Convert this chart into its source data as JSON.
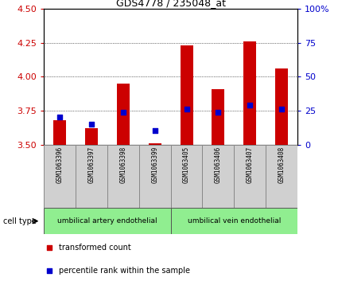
{
  "title": "GDS4778 / 235048_at",
  "samples": [
    "GSM1063396",
    "GSM1063397",
    "GSM1063398",
    "GSM1063399",
    "GSM1063405",
    "GSM1063406",
    "GSM1063407",
    "GSM1063408"
  ],
  "red_values": [
    3.68,
    3.62,
    3.95,
    3.51,
    4.23,
    3.91,
    4.26,
    4.06
  ],
  "blue_percentile": [
    20,
    15,
    24,
    10,
    26,
    24,
    29,
    26
  ],
  "ylim": [
    3.5,
    4.5
  ],
  "yticks": [
    3.5,
    3.75,
    4.0,
    4.25,
    4.5
  ],
  "y2lim": [
    0,
    100
  ],
  "y2ticks": [
    0,
    25,
    50,
    75,
    100
  ],
  "bar_bottom": 3.5,
  "cell_type_artery_label": "umbilical artery endothelial",
  "cell_type_vein_label": "umbilical vein endothelial",
  "cell_type_bg": "#90ee90",
  "legend_red": "transformed count",
  "legend_blue": "percentile rank within the sample",
  "cell_type_label": "cell type",
  "bar_width": 0.4,
  "red_color": "#cc0000",
  "blue_color": "#0000cc",
  "bg_color": "#ffffff",
  "sample_box_color": "#d0d0d0",
  "grid_color": "#000000",
  "tick_color_left": "#cc0000",
  "tick_color_right": "#0000cc"
}
